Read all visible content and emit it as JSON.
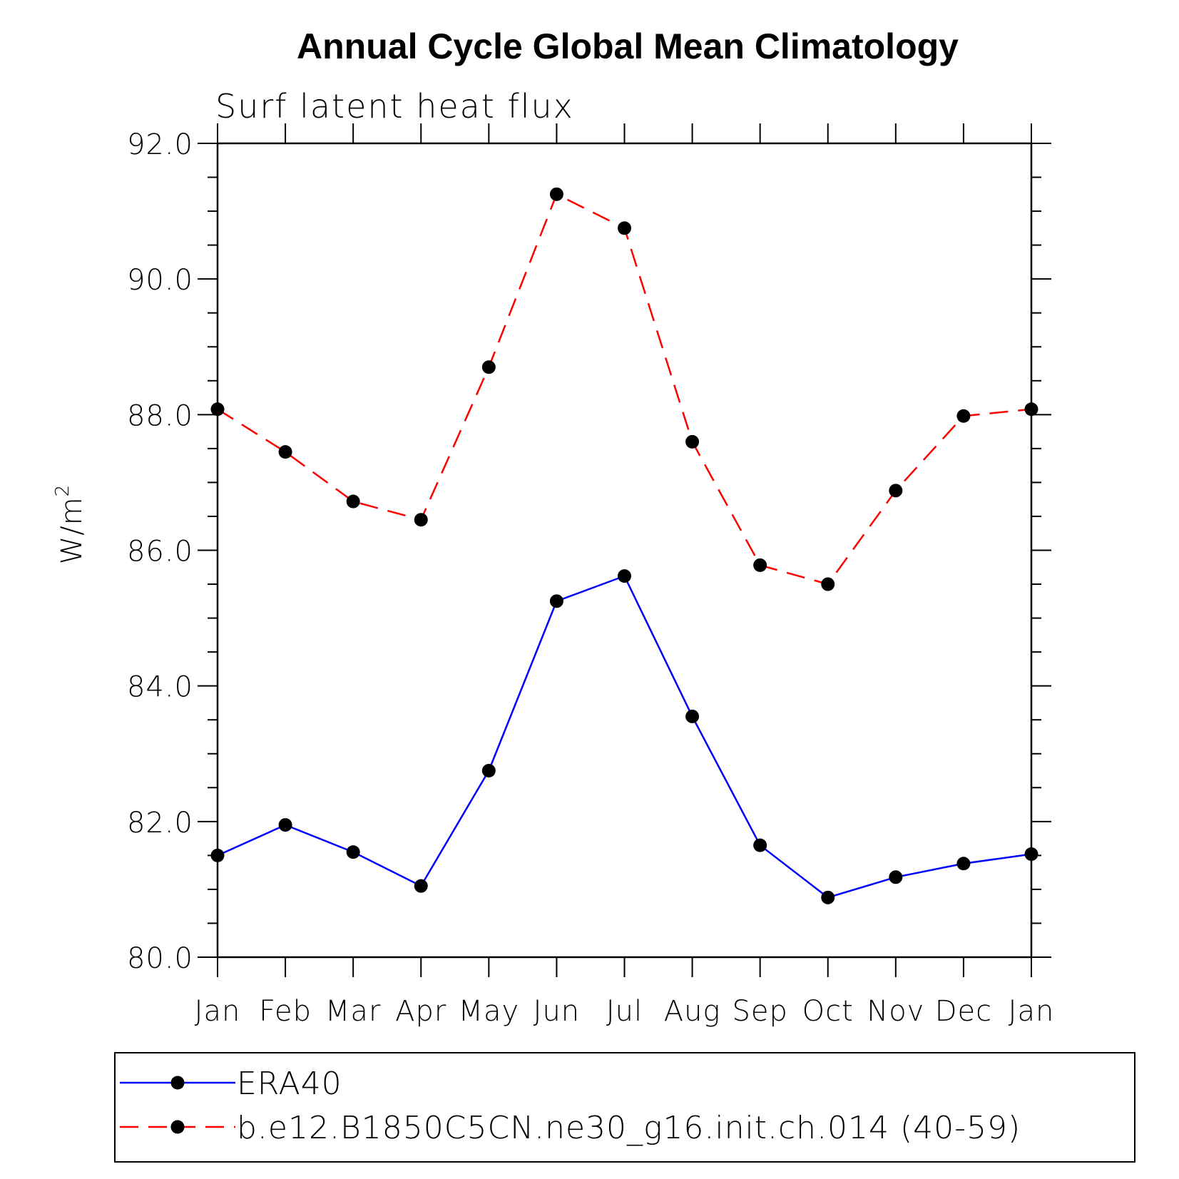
{
  "chart_data": {
    "type": "line",
    "title": "Annual Cycle Global Mean Climatology",
    "subtitle": "Surf latent heat flux",
    "ylabel": "W/m",
    "ylabel_superscript": "2",
    "xlabel": "",
    "ylim": [
      80,
      92
    ],
    "yticks": [
      "80.0",
      "82.0",
      "84.0",
      "86.0",
      "88.0",
      "90.0",
      "92.0"
    ],
    "categories": [
      "Jan",
      "Feb",
      "Mar",
      "Apr",
      "May",
      "Jun",
      "Jul",
      "Aug",
      "Sep",
      "Oct",
      "Nov",
      "Dec",
      "Jan"
    ],
    "series": [
      {
        "name": "ERA40",
        "color": "#0000ff",
        "dash": "solid",
        "marker": "filled-circle",
        "values": [
          81.5,
          81.95,
          81.55,
          81.05,
          82.75,
          85.25,
          85.62,
          83.55,
          81.65,
          80.88,
          81.18,
          81.38,
          81.52
        ]
      },
      {
        "name": "b.e12.B1850C5CN.ne30_g16.init.ch.014 (40-59)",
        "color": "#ff0000",
        "dash": "dashed",
        "marker": "filled-circle",
        "values": [
          88.08,
          87.45,
          86.72,
          86.45,
          88.7,
          91.25,
          90.75,
          87.6,
          85.78,
          85.5,
          86.88,
          87.98,
          88.08
        ]
      }
    ],
    "legend_position": "bottom",
    "grid": false
  }
}
